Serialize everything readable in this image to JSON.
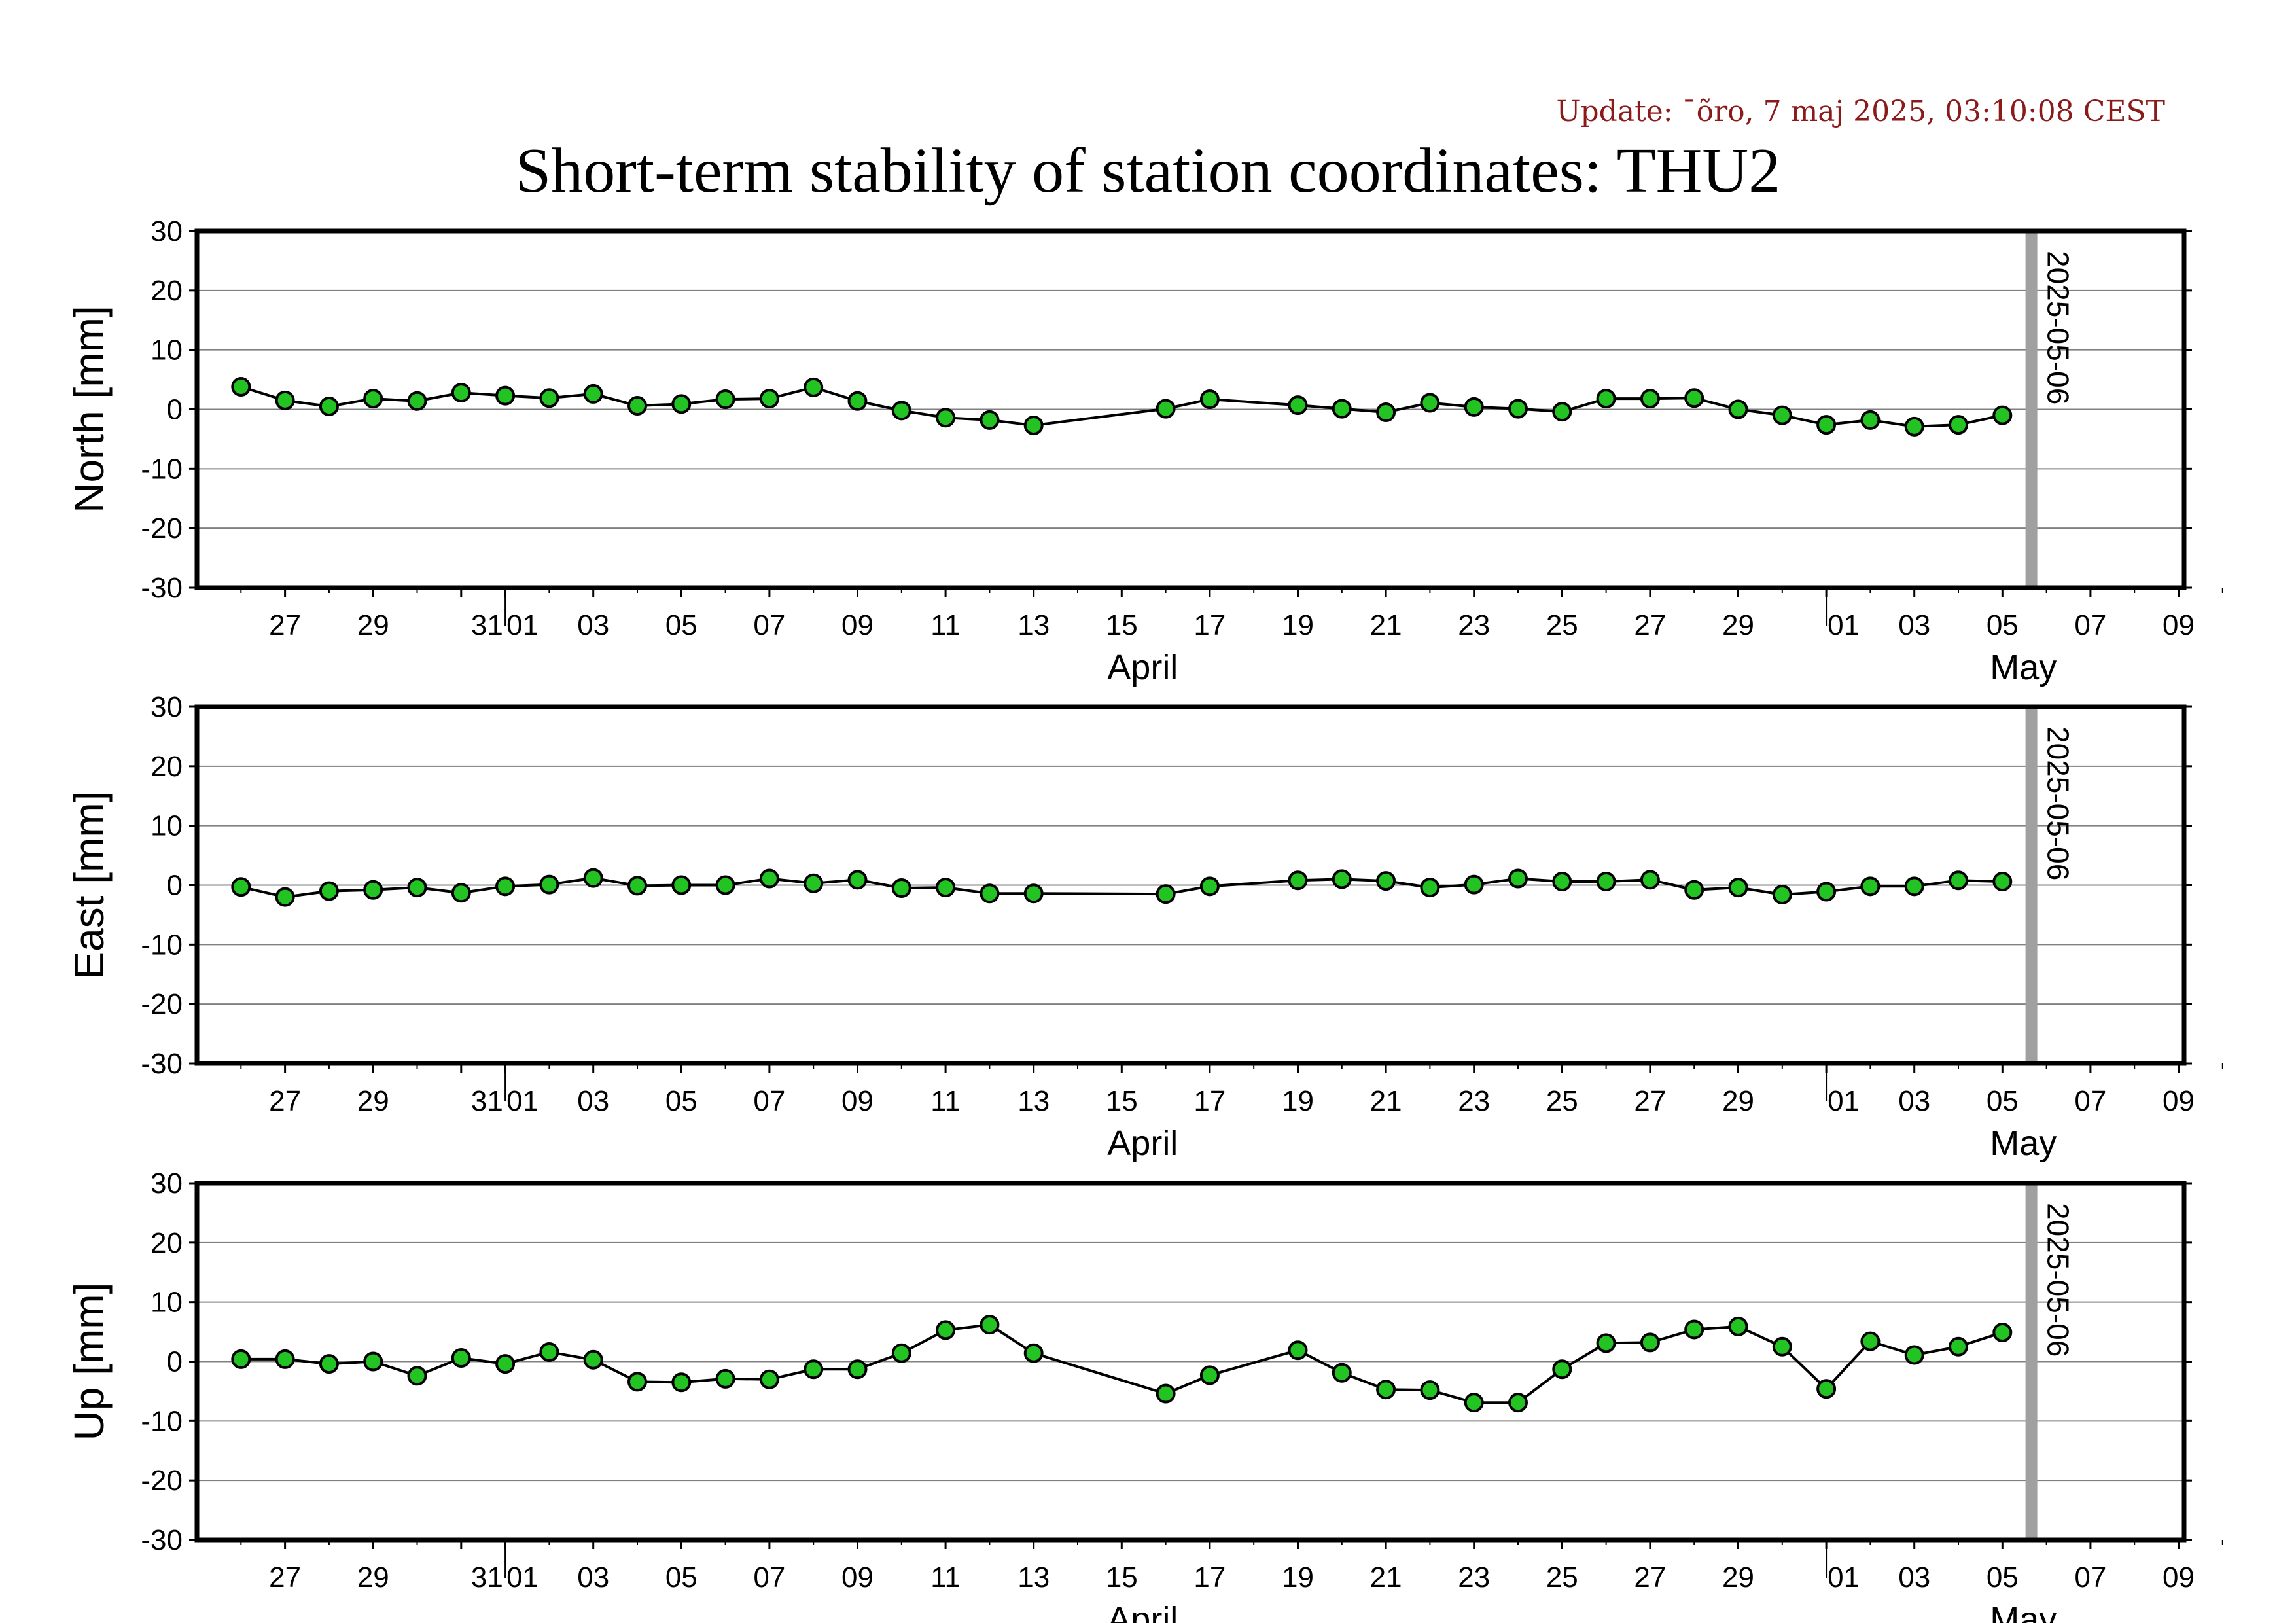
{
  "header": {
    "update": "Update: ¯õro, 7 maj 2025, 03:10:08 CEST",
    "title": "Short-term stability of station coordinates: THU2"
  },
  "colors": {
    "point_fill": "#22c322",
    "line": "#000000",
    "grid": "#808080",
    "marker_line": "#a0a0a0"
  },
  "chart_data": [
    {
      "type": "line",
      "ylabel": "North [mm]",
      "ylim": [
        -30,
        30
      ],
      "yticks": [
        30,
        20,
        10,
        0,
        -10,
        -20,
        -30
      ],
      "xlim": [
        "2025-03-25",
        "2025-05-10"
      ],
      "xtick_labels": [
        "27",
        "29",
        "31",
        "01",
        "03",
        "05",
        "07",
        "09",
        "11",
        "13",
        "15",
        "17",
        "19",
        "21",
        "23",
        "25",
        "27",
        "29",
        "01",
        "03",
        "05",
        "07",
        "09"
      ],
      "month_labels": [
        "April",
        "May"
      ],
      "marker_date": "2025-05-06",
      "marker_label": "2025-05-06",
      "grid": "horizontal",
      "series": [
        {
          "x": [
            "2025-03-26",
            "2025-03-27",
            "2025-03-28",
            "2025-03-29",
            "2025-03-30",
            "2025-03-31",
            "2025-04-01",
            "2025-04-02",
            "2025-04-03",
            "2025-04-04",
            "2025-04-05",
            "2025-04-06",
            "2025-04-07",
            "2025-04-08",
            "2025-04-09",
            "2025-04-10",
            "2025-04-11",
            "2025-04-12",
            "2025-04-13",
            "2025-04-16",
            "2025-04-17",
            "2025-04-19",
            "2025-04-20",
            "2025-04-21",
            "2025-04-22",
            "2025-04-23",
            "2025-04-24",
            "2025-04-25",
            "2025-04-26",
            "2025-04-27",
            "2025-04-28",
            "2025-04-29",
            "2025-04-30",
            "2025-05-01",
            "2025-05-02",
            "2025-05-03",
            "2025-05-04",
            "2025-05-05"
          ],
          "y": [
            3.8,
            1.5,
            0.5,
            1.8,
            1.4,
            2.8,
            2.3,
            1.9,
            2.6,
            0.6,
            0.9,
            1.7,
            1.8,
            3.7,
            1.4,
            -0.2,
            -1.4,
            -1.8,
            -2.7,
            0.1,
            1.7,
            0.7,
            0.1,
            -0.5,
            1.1,
            0.4,
            0.1,
            -0.4,
            1.8,
            1.8,
            1.9,
            0.0,
            -1.0,
            -2.6,
            -1.8,
            -2.9,
            -2.6,
            -1.0
          ]
        }
      ]
    },
    {
      "type": "line",
      "ylabel": "East [mm]",
      "ylim": [
        -30,
        30
      ],
      "yticks": [
        30,
        20,
        10,
        0,
        -10,
        -20,
        -30
      ],
      "xlim": [
        "2025-03-25",
        "2025-05-10"
      ],
      "xtick_labels": [
        "27",
        "29",
        "31",
        "01",
        "03",
        "05",
        "07",
        "09",
        "11",
        "13",
        "15",
        "17",
        "19",
        "21",
        "23",
        "25",
        "27",
        "29",
        "01",
        "03",
        "05",
        "07",
        "09"
      ],
      "month_labels": [
        "April",
        "May"
      ],
      "marker_date": "2025-05-06",
      "marker_label": "2025-05-06",
      "grid": "horizontal",
      "series": [
        {
          "x": [
            "2025-03-26",
            "2025-03-27",
            "2025-03-28",
            "2025-03-29",
            "2025-03-30",
            "2025-03-31",
            "2025-04-01",
            "2025-04-02",
            "2025-04-03",
            "2025-04-04",
            "2025-04-05",
            "2025-04-06",
            "2025-04-07",
            "2025-04-08",
            "2025-04-09",
            "2025-04-10",
            "2025-04-11",
            "2025-04-12",
            "2025-04-13",
            "2025-04-16",
            "2025-04-17",
            "2025-04-19",
            "2025-04-20",
            "2025-04-21",
            "2025-04-22",
            "2025-04-23",
            "2025-04-24",
            "2025-04-25",
            "2025-04-26",
            "2025-04-27",
            "2025-04-28",
            "2025-04-29",
            "2025-04-30",
            "2025-05-01",
            "2025-05-02",
            "2025-05-03",
            "2025-05-04",
            "2025-05-05"
          ],
          "y": [
            -0.3,
            -2.0,
            -1.0,
            -0.8,
            -0.4,
            -1.3,
            -0.2,
            0.1,
            1.2,
            -0.1,
            0.0,
            0.0,
            1.1,
            0.3,
            0.9,
            -0.5,
            -0.4,
            -1.4,
            -1.4,
            -1.5,
            -0.2,
            0.8,
            1.0,
            0.7,
            -0.4,
            0.1,
            1.1,
            0.6,
            0.6,
            0.9,
            -0.8,
            -0.4,
            -1.6,
            -1.1,
            -0.2,
            -0.2,
            0.8,
            0.6
          ]
        }
      ]
    },
    {
      "type": "line",
      "ylabel": "Up [mm]",
      "ylim": [
        -30,
        30
      ],
      "yticks": [
        30,
        20,
        10,
        0,
        -10,
        -20,
        -30
      ],
      "xlim": [
        "2025-03-25",
        "2025-05-10"
      ],
      "xtick_labels": [
        "27",
        "29",
        "31",
        "01",
        "03",
        "05",
        "07",
        "09",
        "11",
        "13",
        "15",
        "17",
        "19",
        "21",
        "23",
        "25",
        "27",
        "29",
        "01",
        "03",
        "05",
        "07",
        "09"
      ],
      "month_labels": [
        "April",
        "May"
      ],
      "marker_date": "2025-05-06",
      "marker_label": "2025-05-06",
      "grid": "horizontal",
      "series": [
        {
          "x": [
            "2025-03-26",
            "2025-03-27",
            "2025-03-28",
            "2025-03-29",
            "2025-03-30",
            "2025-03-31",
            "2025-04-01",
            "2025-04-02",
            "2025-04-03",
            "2025-04-04",
            "2025-04-05",
            "2025-04-06",
            "2025-04-07",
            "2025-04-08",
            "2025-04-09",
            "2025-04-10",
            "2025-04-11",
            "2025-04-12",
            "2025-04-13",
            "2025-04-16",
            "2025-04-17",
            "2025-04-19",
            "2025-04-20",
            "2025-04-21",
            "2025-04-22",
            "2025-04-23",
            "2025-04-24",
            "2025-04-25",
            "2025-04-26",
            "2025-04-27",
            "2025-04-28",
            "2025-04-29",
            "2025-04-30",
            "2025-05-01",
            "2025-05-02",
            "2025-05-03",
            "2025-05-04",
            "2025-05-05"
          ],
          "y": [
            0.4,
            0.4,
            -0.4,
            0.0,
            -2.4,
            0.6,
            -0.4,
            1.6,
            0.3,
            -3.4,
            -3.5,
            -2.9,
            -3.0,
            -1.3,
            -1.3,
            1.4,
            5.3,
            6.2,
            1.4,
            -5.4,
            -2.3,
            1.9,
            -1.9,
            -4.7,
            -4.8,
            -6.9,
            -6.9,
            -1.3,
            3.1,
            3.2,
            5.4,
            5.9,
            2.5,
            -4.6,
            3.4,
            1.1,
            2.5,
            4.9
          ]
        }
      ]
    }
  ]
}
